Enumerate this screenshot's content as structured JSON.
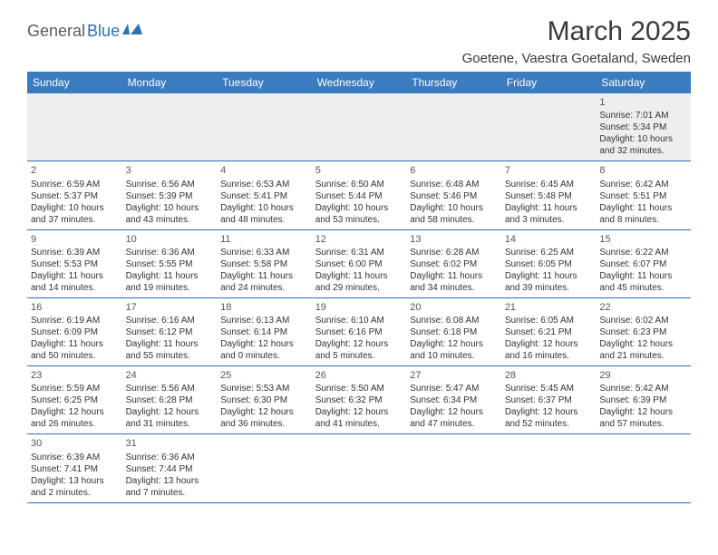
{
  "logo": {
    "part1": "General",
    "part2": "Blue"
  },
  "title": "March 2025",
  "location": "Goetene, Vaestra Goetaland, Sweden",
  "colors": {
    "header_bg": "#3b7bbf",
    "header_text": "#ffffff",
    "row_border": "#2a6db5",
    "empty_bg": "#eeeeee",
    "text": "#333333",
    "logo_gray": "#5a5a5a",
    "logo_blue": "#2f6fb0"
  },
  "day_headers": [
    "Sunday",
    "Monday",
    "Tuesday",
    "Wednesday",
    "Thursday",
    "Friday",
    "Saturday"
  ],
  "weeks": [
    [
      null,
      null,
      null,
      null,
      null,
      null,
      {
        "n": "1",
        "sr": "Sunrise: 7:01 AM",
        "ss": "Sunset: 5:34 PM",
        "d1": "Daylight: 10 hours",
        "d2": "and 32 minutes."
      }
    ],
    [
      {
        "n": "2",
        "sr": "Sunrise: 6:59 AM",
        "ss": "Sunset: 5:37 PM",
        "d1": "Daylight: 10 hours",
        "d2": "and 37 minutes."
      },
      {
        "n": "3",
        "sr": "Sunrise: 6:56 AM",
        "ss": "Sunset: 5:39 PM",
        "d1": "Daylight: 10 hours",
        "d2": "and 43 minutes."
      },
      {
        "n": "4",
        "sr": "Sunrise: 6:53 AM",
        "ss": "Sunset: 5:41 PM",
        "d1": "Daylight: 10 hours",
        "d2": "and 48 minutes."
      },
      {
        "n": "5",
        "sr": "Sunrise: 6:50 AM",
        "ss": "Sunset: 5:44 PM",
        "d1": "Daylight: 10 hours",
        "d2": "and 53 minutes."
      },
      {
        "n": "6",
        "sr": "Sunrise: 6:48 AM",
        "ss": "Sunset: 5:46 PM",
        "d1": "Daylight: 10 hours",
        "d2": "and 58 minutes."
      },
      {
        "n": "7",
        "sr": "Sunrise: 6:45 AM",
        "ss": "Sunset: 5:48 PM",
        "d1": "Daylight: 11 hours",
        "d2": "and 3 minutes."
      },
      {
        "n": "8",
        "sr": "Sunrise: 6:42 AM",
        "ss": "Sunset: 5:51 PM",
        "d1": "Daylight: 11 hours",
        "d2": "and 8 minutes."
      }
    ],
    [
      {
        "n": "9",
        "sr": "Sunrise: 6:39 AM",
        "ss": "Sunset: 5:53 PM",
        "d1": "Daylight: 11 hours",
        "d2": "and 14 minutes."
      },
      {
        "n": "10",
        "sr": "Sunrise: 6:36 AM",
        "ss": "Sunset: 5:55 PM",
        "d1": "Daylight: 11 hours",
        "d2": "and 19 minutes."
      },
      {
        "n": "11",
        "sr": "Sunrise: 6:33 AM",
        "ss": "Sunset: 5:58 PM",
        "d1": "Daylight: 11 hours",
        "d2": "and 24 minutes."
      },
      {
        "n": "12",
        "sr": "Sunrise: 6:31 AM",
        "ss": "Sunset: 6:00 PM",
        "d1": "Daylight: 11 hours",
        "d2": "and 29 minutes."
      },
      {
        "n": "13",
        "sr": "Sunrise: 6:28 AM",
        "ss": "Sunset: 6:02 PM",
        "d1": "Daylight: 11 hours",
        "d2": "and 34 minutes."
      },
      {
        "n": "14",
        "sr": "Sunrise: 6:25 AM",
        "ss": "Sunset: 6:05 PM",
        "d1": "Daylight: 11 hours",
        "d2": "and 39 minutes."
      },
      {
        "n": "15",
        "sr": "Sunrise: 6:22 AM",
        "ss": "Sunset: 6:07 PM",
        "d1": "Daylight: 11 hours",
        "d2": "and 45 minutes."
      }
    ],
    [
      {
        "n": "16",
        "sr": "Sunrise: 6:19 AM",
        "ss": "Sunset: 6:09 PM",
        "d1": "Daylight: 11 hours",
        "d2": "and 50 minutes."
      },
      {
        "n": "17",
        "sr": "Sunrise: 6:16 AM",
        "ss": "Sunset: 6:12 PM",
        "d1": "Daylight: 11 hours",
        "d2": "and 55 minutes."
      },
      {
        "n": "18",
        "sr": "Sunrise: 6:13 AM",
        "ss": "Sunset: 6:14 PM",
        "d1": "Daylight: 12 hours",
        "d2": "and 0 minutes."
      },
      {
        "n": "19",
        "sr": "Sunrise: 6:10 AM",
        "ss": "Sunset: 6:16 PM",
        "d1": "Daylight: 12 hours",
        "d2": "and 5 minutes."
      },
      {
        "n": "20",
        "sr": "Sunrise: 6:08 AM",
        "ss": "Sunset: 6:18 PM",
        "d1": "Daylight: 12 hours",
        "d2": "and 10 minutes."
      },
      {
        "n": "21",
        "sr": "Sunrise: 6:05 AM",
        "ss": "Sunset: 6:21 PM",
        "d1": "Daylight: 12 hours",
        "d2": "and 16 minutes."
      },
      {
        "n": "22",
        "sr": "Sunrise: 6:02 AM",
        "ss": "Sunset: 6:23 PM",
        "d1": "Daylight: 12 hours",
        "d2": "and 21 minutes."
      }
    ],
    [
      {
        "n": "23",
        "sr": "Sunrise: 5:59 AM",
        "ss": "Sunset: 6:25 PM",
        "d1": "Daylight: 12 hours",
        "d2": "and 26 minutes."
      },
      {
        "n": "24",
        "sr": "Sunrise: 5:56 AM",
        "ss": "Sunset: 6:28 PM",
        "d1": "Daylight: 12 hours",
        "d2": "and 31 minutes."
      },
      {
        "n": "25",
        "sr": "Sunrise: 5:53 AM",
        "ss": "Sunset: 6:30 PM",
        "d1": "Daylight: 12 hours",
        "d2": "and 36 minutes."
      },
      {
        "n": "26",
        "sr": "Sunrise: 5:50 AM",
        "ss": "Sunset: 6:32 PM",
        "d1": "Daylight: 12 hours",
        "d2": "and 41 minutes."
      },
      {
        "n": "27",
        "sr": "Sunrise: 5:47 AM",
        "ss": "Sunset: 6:34 PM",
        "d1": "Daylight: 12 hours",
        "d2": "and 47 minutes."
      },
      {
        "n": "28",
        "sr": "Sunrise: 5:45 AM",
        "ss": "Sunset: 6:37 PM",
        "d1": "Daylight: 12 hours",
        "d2": "and 52 minutes."
      },
      {
        "n": "29",
        "sr": "Sunrise: 5:42 AM",
        "ss": "Sunset: 6:39 PM",
        "d1": "Daylight: 12 hours",
        "d2": "and 57 minutes."
      }
    ],
    [
      {
        "n": "30",
        "sr": "Sunrise: 6:39 AM",
        "ss": "Sunset: 7:41 PM",
        "d1": "Daylight: 13 hours",
        "d2": "and 2 minutes."
      },
      {
        "n": "31",
        "sr": "Sunrise: 6:36 AM",
        "ss": "Sunset: 7:44 PM",
        "d1": "Daylight: 13 hours",
        "d2": "and 7 minutes."
      },
      null,
      null,
      null,
      null,
      null
    ]
  ]
}
